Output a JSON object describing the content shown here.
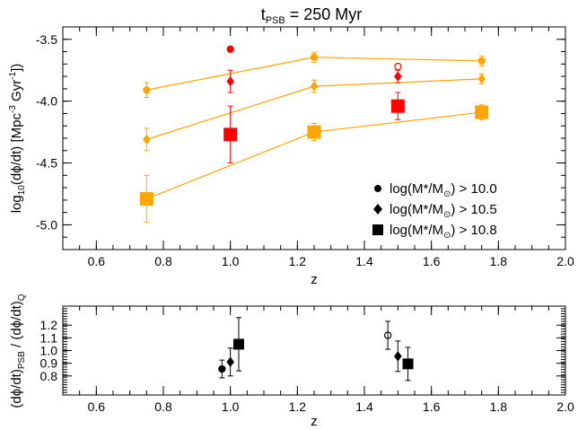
{
  "chart_data": [
    {
      "type": "scatter",
      "title": {
        "base": "t",
        "sub": "PSB",
        "rest": " = 250 Myr"
      },
      "xlabel": "z",
      "ylabel": {
        "p1": "log",
        "p1sub": "10",
        "p2": "(dϕ/dt) [Mpc",
        "p2sup": "-3",
        "p3": " Gyr",
        "p3sup": "-1",
        "p4": "])"
      },
      "xlim": [
        0.5,
        2.0
      ],
      "ylim": [
        -5.2,
        -3.4
      ],
      "xticks": [
        "0.6",
        "0.8",
        "1.0",
        "1.2",
        "1.4",
        "1.6",
        "1.8",
        "2.0"
      ],
      "yticks": [
        "-3.5",
        "-4.0",
        "-4.5",
        "-5.0"
      ],
      "ytick_values": [
        -3.5,
        -4.0,
        -4.5,
        -5.0
      ],
      "colors": {
        "model": "#FFA500",
        "observed": "#FF0000",
        "axis": "#000000"
      },
      "series": [
        {
          "marker": "circle",
          "legend_label": {
            "pre": "log(M*/M",
            "sun": "⊙",
            "post": ") > 10.0"
          },
          "model_x": [
            0.75,
            1.25,
            1.75
          ],
          "model_y": [
            -3.91,
            -3.645,
            -3.675
          ],
          "model_err": [
            0.06,
            0.04,
            0.04
          ],
          "observed": [
            {
              "x": 1.0,
              "y": -3.58,
              "err": 0.0,
              "filled": true
            },
            {
              "x": 1.5,
              "y": -3.72,
              "err": 0.0,
              "filled": false
            }
          ]
        },
        {
          "marker": "diamond",
          "legend_label": {
            "pre": "log(M*/M",
            "sun": "⊙",
            "post": ") > 10.5"
          },
          "model_x": [
            0.75,
            1.25,
            1.75
          ],
          "model_y": [
            -4.31,
            -3.88,
            -3.82
          ],
          "model_err": [
            0.09,
            0.05,
            0.04
          ],
          "observed": [
            {
              "x": 1.0,
              "y": -3.84,
              "err": 0.09,
              "filled": true
            },
            {
              "x": 1.5,
              "y": -3.8,
              "err": 0.05,
              "filled": true
            }
          ]
        },
        {
          "marker": "square",
          "legend_label": {
            "pre": "log(M*/M",
            "sun": "⊙",
            "post": ") > 10.8"
          },
          "model_x": [
            0.75,
            1.25,
            1.75
          ],
          "model_y": [
            -4.79,
            -4.25,
            -4.09
          ],
          "model_err": [
            0.19,
            0.07,
            0.06
          ],
          "observed": [
            {
              "x": 1.0,
              "y": -4.27,
              "err": 0.23,
              "filled": true
            },
            {
              "x": 1.5,
              "y": -4.04,
              "err": 0.11,
              "filled": true
            }
          ]
        }
      ]
    },
    {
      "type": "scatter",
      "xlabel": "z",
      "ylabel": {
        "p1": "(dϕ/dt)",
        "p1sub": "PSB",
        "p2": " / (dϕ/dt)",
        "p2sub": "Q"
      },
      "xlim": [
        0.5,
        2.0
      ],
      "ylim": [
        0.65,
        1.35
      ],
      "xticks": [
        "0.6",
        "0.8",
        "1.0",
        "1.2",
        "1.4",
        "1.6",
        "1.8",
        "2.0"
      ],
      "yticks": [
        "0.8",
        "0.9",
        "1.0",
        "1.1",
        "1.2"
      ],
      "ytick_values": [
        0.8,
        0.9,
        1.0,
        1.1,
        1.2
      ],
      "points": [
        {
          "marker": "circle",
          "x": 0.975,
          "y": 0.855,
          "err": 0.07,
          "filled": true
        },
        {
          "marker": "diamond",
          "x": 1.0,
          "y": 0.91,
          "err": 0.11,
          "filled": true
        },
        {
          "marker": "square",
          "x": 1.025,
          "y": 1.05,
          "err": 0.21,
          "filled": true
        },
        {
          "marker": "circle",
          "x": 1.47,
          "y": 1.12,
          "err": 0.11,
          "filled": false
        },
        {
          "marker": "diamond",
          "x": 1.5,
          "y": 0.955,
          "err": 0.12,
          "filled": true
        },
        {
          "marker": "square",
          "x": 1.53,
          "y": 0.895,
          "err": 0.13,
          "filled": true
        }
      ]
    }
  ]
}
